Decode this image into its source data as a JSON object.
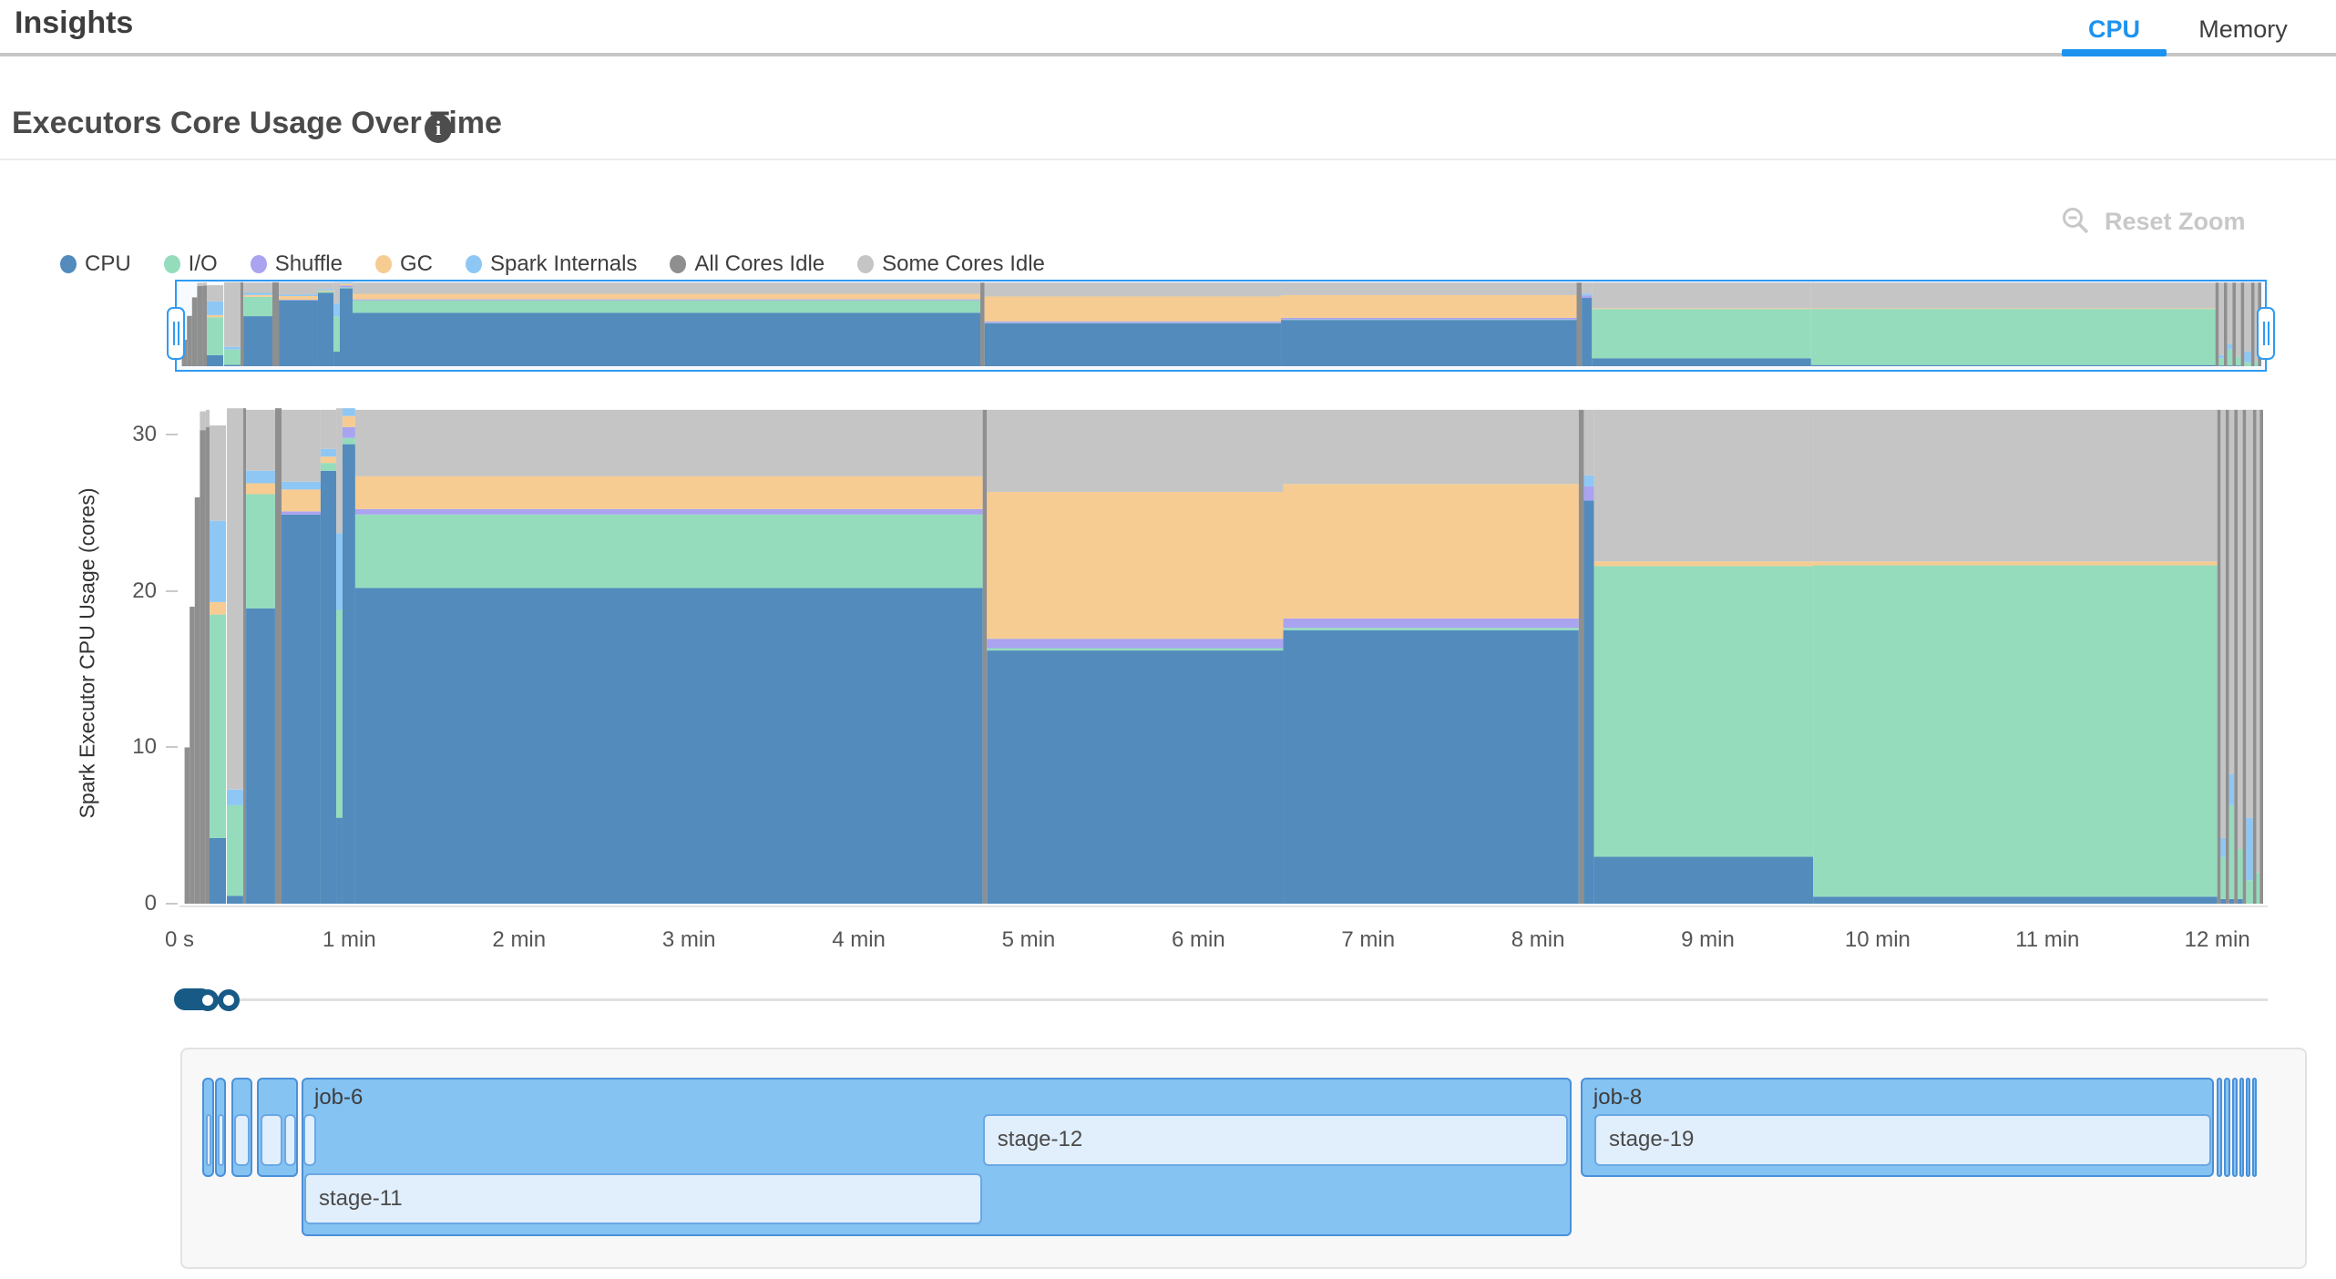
{
  "header": {
    "title": "Insights",
    "tabs": [
      {
        "label": "CPU",
        "active": true
      },
      {
        "label": "Memory",
        "active": false
      }
    ],
    "accent_color": "#1d93f0"
  },
  "section": {
    "title": "Executors Core Usage Over Time",
    "info_icon": "info-icon",
    "reset_zoom_label": "Reset Zoom"
  },
  "legend": {
    "items": [
      {
        "label": "CPU",
        "color": "#528bbc"
      },
      {
        "label": "I/O",
        "color": "#95dcbd"
      },
      {
        "label": "Shuffle",
        "color": "#a9a3f0"
      },
      {
        "label": "GC",
        "color": "#f6cc92"
      },
      {
        "label": "Spark Internals",
        "color": "#8fc7f4"
      },
      {
        "label": "All Cores Idle",
        "color": "#8f8f8f"
      },
      {
        "label": "Some Cores Idle",
        "color": "#c5c5c5"
      }
    ]
  },
  "chart_data": {
    "type": "area",
    "title": "Executors Core Usage Over Time",
    "xlabel": "",
    "ylabel": "Spark Executor CPU Usage (cores)",
    "xlim": [
      0,
      12.27
    ],
    "ylim": [
      0,
      32
    ],
    "y_ticks": [
      0,
      10,
      20,
      30
    ],
    "x_ticks": [
      {
        "t": 0,
        "label": "0 s"
      },
      {
        "t": 1,
        "label": "1 min"
      },
      {
        "t": 2,
        "label": "2 min"
      },
      {
        "t": 3,
        "label": "3 min"
      },
      {
        "t": 4,
        "label": "4 min"
      },
      {
        "t": 5,
        "label": "5 min"
      },
      {
        "t": 6,
        "label": "6 min"
      },
      {
        "t": 7,
        "label": "7 min"
      },
      {
        "t": 8,
        "label": "8 min"
      },
      {
        "t": 9,
        "label": "9 min"
      },
      {
        "t": 10,
        "label": "10 min"
      },
      {
        "t": 11,
        "label": "11 min"
      },
      {
        "t": 12,
        "label": "12 min"
      }
    ],
    "stack_order": [
      "cpu",
      "io",
      "shuffle",
      "gc",
      "internals",
      "all_idle",
      "some_idle"
    ],
    "colors": {
      "cpu": "#528bbc",
      "io": "#95dcbd",
      "shuffle": "#a9a3f0",
      "gc": "#f6cc92",
      "internals": "#8fc7f4",
      "all_idle": "#8f8f8f",
      "some_idle": "#c5c5c5"
    },
    "legend_position": "top-left",
    "grid": false,
    "segments": [
      {
        "t0": 0.03,
        "t1": 0.06,
        "all_idle": 10
      },
      {
        "t0": 0.06,
        "t1": 0.09,
        "all_idle": 19
      },
      {
        "t0": 0.09,
        "t1": 0.12,
        "all_idle": 26
      },
      {
        "t0": 0.12,
        "t1": 0.155,
        "all_idle": 30.3,
        "some_idle": 1.2
      },
      {
        "t0": 0.155,
        "t1": 0.177,
        "all_idle": 30.5,
        "some_idle": 1.1
      },
      {
        "t0": 0.177,
        "t1": 0.274,
        "cpu": 4.2,
        "io": 14.3,
        "gc": 0.8,
        "internals": 5.2,
        "some_idle": 6.1
      },
      {
        "t0": 0.279,
        "t1": 0.375,
        "cpu": 0.5,
        "io": 5.8,
        "internals": 1.0,
        "some_idle": 24.4
      },
      {
        "t0": 0.375,
        "t1": 0.392,
        "all_idle": 31.7
      },
      {
        "t0": 0.392,
        "t1": 0.563,
        "cpu": 18.9,
        "io": 7.3,
        "gc": 0.7,
        "internals": 0.8,
        "some_idle": 3.9
      },
      {
        "t0": 0.563,
        "t1": 0.601,
        "all_idle": 31.7
      },
      {
        "t0": 0.601,
        "t1": 0.831,
        "cpu": 24.9,
        "shuffle": 0.2,
        "gc": 1.4,
        "internals": 0.5,
        "some_idle": 4.6
      },
      {
        "t0": 0.831,
        "t1": 0.923,
        "cpu": 27.7,
        "io": 0.5,
        "gc": 0.4,
        "internals": 0.5,
        "some_idle": 2.5
      },
      {
        "t0": 0.923,
        "t1": 0.96,
        "cpu": 5.5,
        "io": 13.3,
        "internals": 4.9,
        "some_idle": 8.0
      },
      {
        "t0": 0.96,
        "t1": 1.035,
        "cpu": 29.4,
        "io": 0.4,
        "shuffle": 0.7,
        "gc": 0.7,
        "internals": 0.5
      },
      {
        "t0": 1.035,
        "t1": 4.73,
        "cpu": 20.2,
        "io": 4.7,
        "shuffle": 0.35,
        "gc": 2.1,
        "some_idle": 4.25
      },
      {
        "t0": 4.73,
        "t1": 4.755,
        "all_idle": 31.6
      },
      {
        "t0": 4.755,
        "t1": 6.5,
        "cpu": 16.2,
        "io": 0.15,
        "shuffle": 0.6,
        "gc": 9.4,
        "some_idle": 5.25
      },
      {
        "t0": 6.5,
        "t1": 8.24,
        "cpu": 17.5,
        "io": 0.15,
        "shuffle": 0.6,
        "gc": 8.6,
        "some_idle": 4.75
      },
      {
        "t0": 8.24,
        "t1": 8.27,
        "all_idle": 31.6
      },
      {
        "t0": 8.27,
        "t1": 8.33,
        "cpu": 25.8,
        "shuffle": 0.9,
        "internals": 0.7,
        "some_idle": 4.2
      },
      {
        "t0": 8.33,
        "t1": 9.62,
        "cpu": 3.0,
        "io": 18.6,
        "gc": 0.3,
        "some_idle": 9.7
      },
      {
        "t0": 9.62,
        "t1": 12.0,
        "cpu": 0.45,
        "io": 21.2,
        "gc": 0.25,
        "some_idle": 9.7
      },
      {
        "t0": 12.0,
        "t1": 12.02,
        "all_idle": 31.6
      },
      {
        "t0": 12.02,
        "t1": 12.05,
        "cpu": 0.3,
        "io": 2.7,
        "internals": 1.2,
        "some_idle": 27.4
      },
      {
        "t0": 12.05,
        "t1": 12.07,
        "all_idle": 31.6
      },
      {
        "t0": 12.07,
        "t1": 12.1,
        "cpu": 0.3,
        "io": 6.0,
        "internals": 2.0,
        "some_idle": 23.3
      },
      {
        "t0": 12.1,
        "t1": 12.12,
        "all_idle": 31.6
      },
      {
        "t0": 12.12,
        "t1": 12.15,
        "cpu": 0.3,
        "io": 3.2,
        "some_idle": 28.1
      },
      {
        "t0": 12.15,
        "t1": 12.17,
        "all_idle": 31.6
      },
      {
        "t0": 12.17,
        "t1": 12.21,
        "io": 1.5,
        "internals": 4.0,
        "some_idle": 26.1
      },
      {
        "t0": 12.21,
        "t1": 12.23,
        "all_idle": 31.6
      },
      {
        "t0": 12.23,
        "t1": 12.25,
        "io": 2.0,
        "some_idle": 29.6
      },
      {
        "t0": 12.25,
        "t1": 12.27,
        "all_idle": 31.6
      }
    ]
  },
  "timeline": {
    "jobs": [
      {
        "label": "",
        "t0": 0.134,
        "t1": 0.204,
        "rows": 1,
        "stages": [
          {
            "label": "",
            "row": 1,
            "t0": 0.156,
            "t1": 0.188
          }
        ]
      },
      {
        "label": "",
        "t0": 0.209,
        "t1": 0.274,
        "rows": 1,
        "stages": [
          {
            "label": "",
            "row": 1,
            "t0": 0.225,
            "t1": 0.263
          }
        ]
      },
      {
        "label": "",
        "t0": 0.306,
        "t1": 0.429,
        "rows": 1,
        "stages": [
          {
            "label": "",
            "row": 1,
            "t0": 0.322,
            "t1": 0.413
          }
        ]
      },
      {
        "label": "",
        "t0": 0.456,
        "t1": 0.697,
        "rows": 1,
        "stages": [
          {
            "label": "",
            "row": 1,
            "t0": 0.477,
            "t1": 0.606
          },
          {
            "label": "",
            "row": 1,
            "t0": 0.617,
            "t1": 0.687
          }
        ]
      },
      {
        "label": "job-6",
        "t0": 0.719,
        "t1": 8.197,
        "rows": 2,
        "stages": [
          {
            "label": "",
            "row": 1,
            "t0": 0.73,
            "t1": 0.805
          },
          {
            "label": "stage-12",
            "row": 1,
            "t0": 4.731,
            "t1": 8.178
          },
          {
            "label": "stage-11",
            "row": 2,
            "t0": 0.735,
            "t1": 4.726
          }
        ]
      },
      {
        "label": "job-8",
        "t0": 8.251,
        "t1": 11.979,
        "rows": 1,
        "stages": [
          {
            "label": "stage-19",
            "row": 1,
            "t0": 8.332,
            "t1": 11.963
          }
        ]
      },
      {
        "label": "",
        "t0": 11.995,
        "t1": 12.027,
        "rows": 1,
        "stages": []
      },
      {
        "label": "",
        "t0": 12.038,
        "t1": 12.075,
        "rows": 1,
        "stages": []
      },
      {
        "label": "",
        "t0": 12.086,
        "t1": 12.118,
        "rows": 1,
        "stages": []
      },
      {
        "label": "",
        "t0": 12.129,
        "t1": 12.155,
        "rows": 1,
        "stages": []
      },
      {
        "label": "",
        "t0": 12.166,
        "t1": 12.193,
        "rows": 1,
        "stages": []
      },
      {
        "label": "",
        "t0": 12.204,
        "t1": 12.225,
        "rows": 1,
        "stages": []
      }
    ]
  }
}
